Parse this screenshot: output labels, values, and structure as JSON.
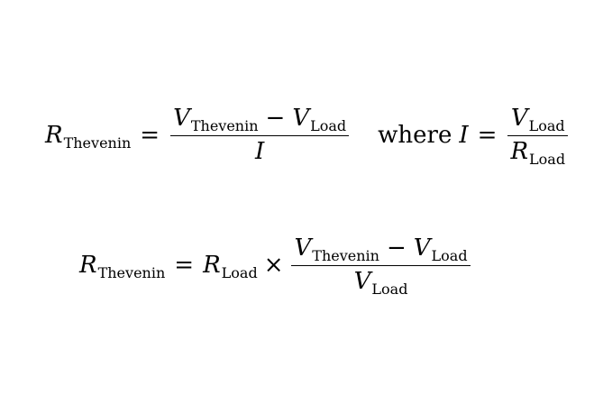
{
  "equation1": {
    "lhs": {
      "var": "R",
      "sub": "Thevenin"
    },
    "equals": "=",
    "fraction": {
      "numerator": [
        {
          "var": "V",
          "sub": "Thevenin"
        },
        {
          "op": "−"
        },
        {
          "var": "V",
          "sub": "Load"
        }
      ],
      "denominator": {
        "var": "I"
      }
    },
    "where_text": "where",
    "where_clause": {
      "lhs": {
        "var": "I"
      },
      "equals": "=",
      "fraction": {
        "numerator": {
          "var": "V",
          "sub": "Load"
        },
        "denominator": {
          "var": "R",
          "sub": "Load"
        }
      }
    }
  },
  "equation2": {
    "lhs": {
      "var": "R",
      "sub": "Thevenin"
    },
    "equals": "=",
    "factor": {
      "var": "R",
      "sub": "Load"
    },
    "times": "×",
    "fraction": {
      "numerator": [
        {
          "var": "V",
          "sub": "Thevenin"
        },
        {
          "op": "−"
        },
        {
          "var": "V",
          "sub": "Load"
        }
      ],
      "denominator": {
        "var": "V",
        "sub": "Load"
      }
    }
  }
}
